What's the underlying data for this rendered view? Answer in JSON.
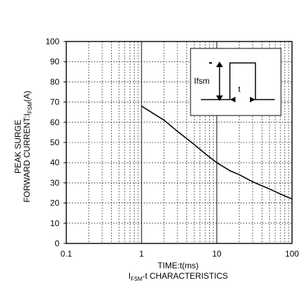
{
  "chart_data": {
    "type": "line",
    "x_scale": "log",
    "xlim": [
      0.1,
      100
    ],
    "ylim": [
      0,
      100
    ],
    "x_ticks": [
      "0.1",
      "1",
      "10",
      "100"
    ],
    "y_ticks": [
      "0",
      "10",
      "20",
      "30",
      "40",
      "50",
      "60",
      "70",
      "80",
      "90",
      "100"
    ],
    "xlabel": "TIME:t(ms)",
    "ylabel_line1": "PEAK SURGE",
    "ylabel_line2_main": "FORWARD CURRENT:I",
    "ylabel_line2_sub": "FSM",
    "ylabel_line2_end": "(A)",
    "caption_main": "I",
    "caption_sub": "FSM",
    "caption_end": "-t CHARACTERISTICS",
    "grid": true,
    "series": [
      {
        "color": "#000000",
        "x": [
          1,
          2,
          3,
          5,
          7,
          10,
          15,
          20,
          30,
          50,
          70,
          100
        ],
        "y": [
          68,
          61,
          55.5,
          49,
          44.5,
          40,
          36,
          34,
          30.5,
          27,
          24.5,
          22
        ]
      }
    ],
    "inset": {
      "label_ifsm": "Ifsm",
      "label_t": "t"
    }
  }
}
